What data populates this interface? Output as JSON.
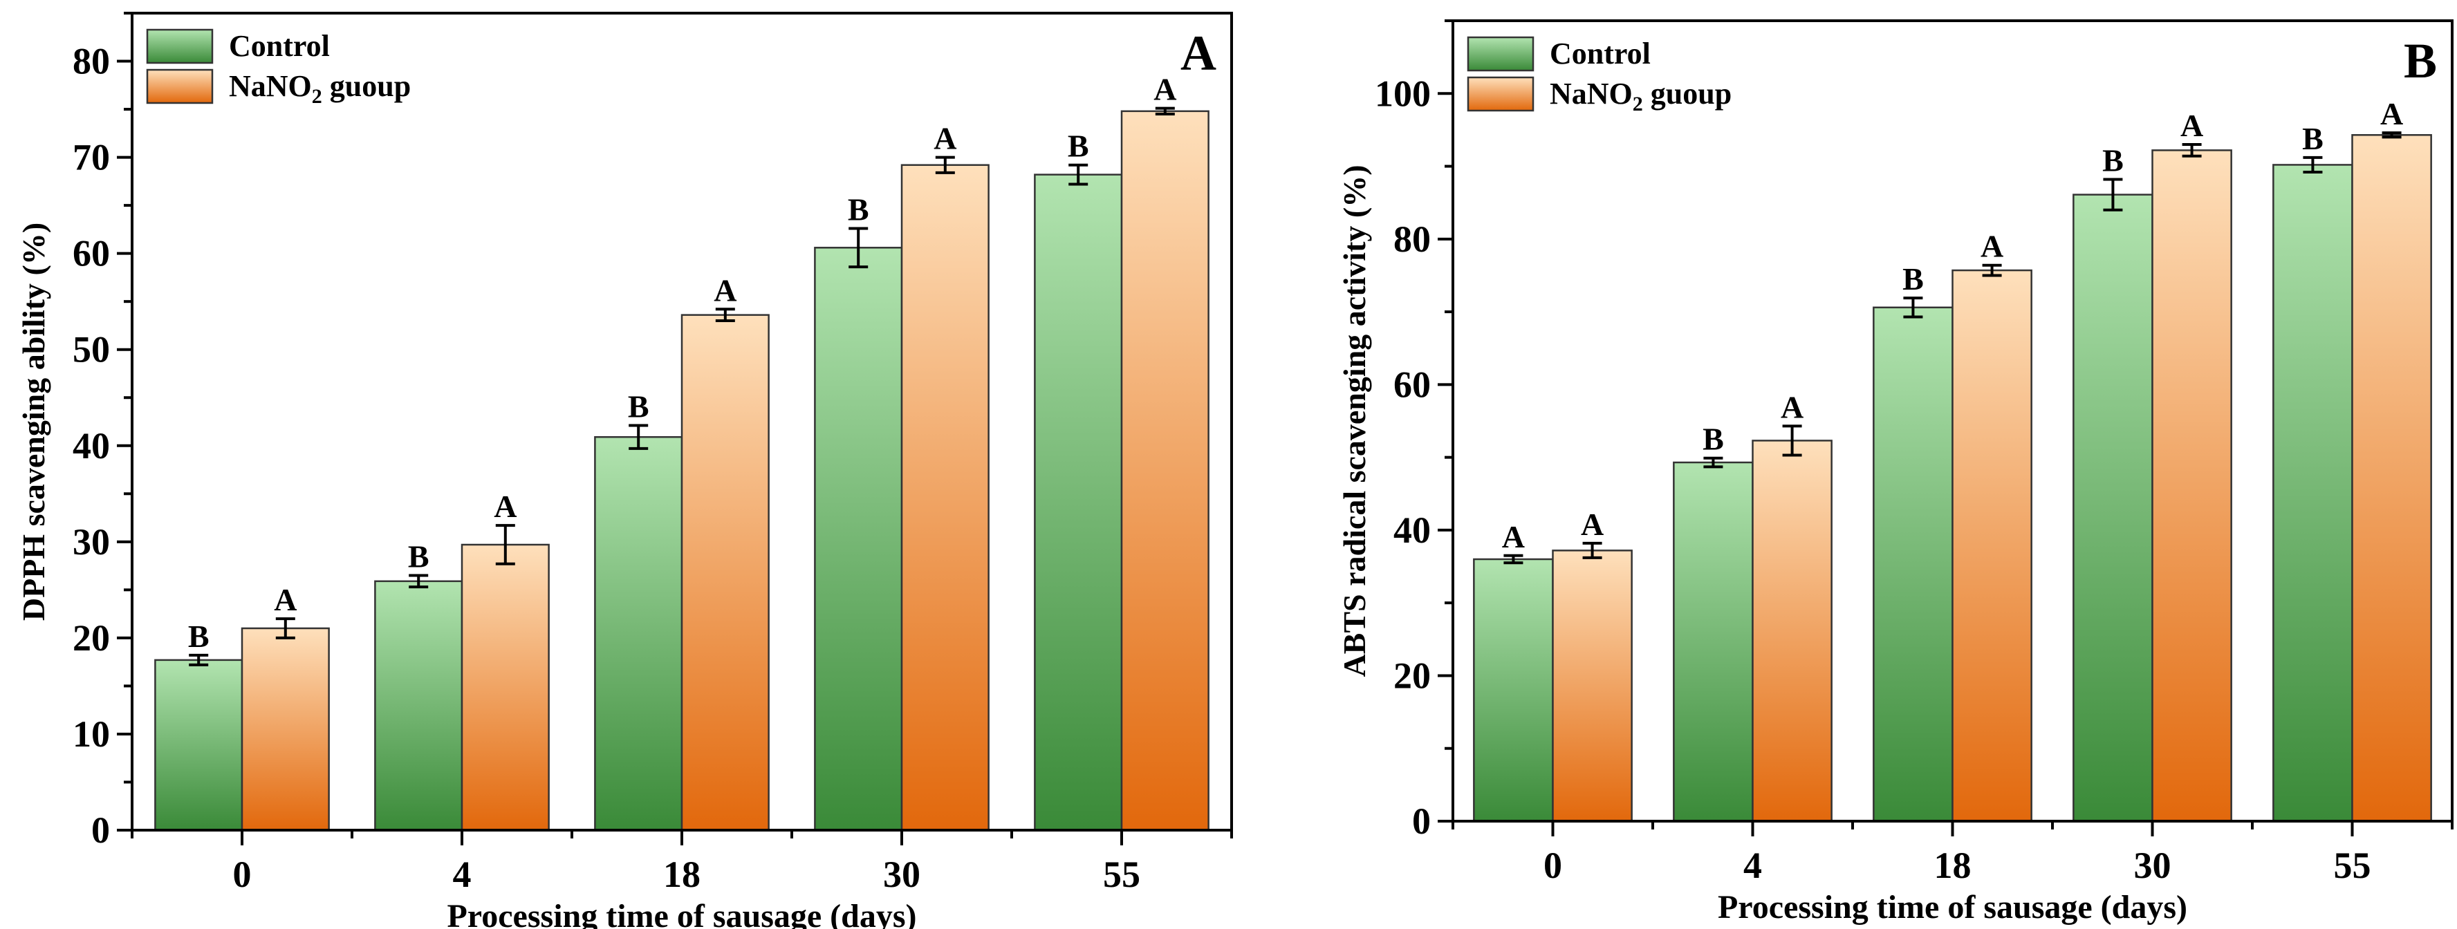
{
  "colors": {
    "control_top": "#b2e4b0",
    "control_bottom": "#3a8a38",
    "nano2_top": "#fee0bc",
    "nano2_bottom": "#e2680c"
  },
  "chart_data": [
    {
      "type": "bar",
      "panel_label": "A",
      "title": "",
      "xlabel": "Processing time of sausage (days)",
      "ylabel": "DPPH scavenging ability (%)",
      "categories": [
        "0",
        "4",
        "18",
        "30",
        "55"
      ],
      "ylim": [
        0,
        85
      ],
      "yticks": [
        0,
        10,
        20,
        30,
        40,
        50,
        60,
        70,
        80
      ],
      "yminor_step": 5,
      "grid": false,
      "legend_position": "top-left",
      "series": [
        {
          "name": "Control",
          "values": [
            17.7,
            25.9,
            40.9,
            60.6,
            68.2
          ],
          "errors": [
            0.5,
            0.6,
            1.2,
            2.0,
            1.0
          ],
          "letters": [
            "B",
            "B",
            "B",
            "B",
            "B"
          ]
        },
        {
          "name": "NaNO2 guoup",
          "name_parts": [
            "NaNO",
            "2",
            " guoup"
          ],
          "values": [
            21.0,
            29.7,
            53.6,
            69.2,
            74.8
          ],
          "errors": [
            1.0,
            2.0,
            0.6,
            0.8,
            0.3
          ],
          "letters": [
            "A",
            "A",
            "A",
            "A",
            "A"
          ]
        }
      ]
    },
    {
      "type": "bar",
      "panel_label": "B",
      "title": "",
      "xlabel": "Processing time of sausage (days)",
      "ylabel": "ABTS radical scavenging activity (%)",
      "categories": [
        "0",
        "4",
        "18",
        "30",
        "55"
      ],
      "ylim": [
        0,
        110
      ],
      "yticks": [
        0,
        20,
        40,
        60,
        80,
        100
      ],
      "yminor_step": 10,
      "grid": false,
      "legend_position": "top-left",
      "series": [
        {
          "name": "Control",
          "values": [
            36.0,
            49.3,
            70.6,
            86.1,
            90.2
          ],
          "errors": [
            0.5,
            0.6,
            1.3,
            2.1,
            1.0
          ],
          "letters": [
            "A",
            "B",
            "B",
            "B",
            "B"
          ]
        },
        {
          "name": "NaNO2 guoup",
          "name_parts": [
            "NaNO",
            "2",
            " guoup"
          ],
          "values": [
            37.2,
            52.3,
            75.7,
            92.2,
            94.3
          ],
          "errors": [
            1.0,
            2.0,
            0.7,
            0.8,
            0.3
          ],
          "letters": [
            "A",
            "A",
            "A",
            "A",
            "A"
          ]
        }
      ]
    }
  ]
}
